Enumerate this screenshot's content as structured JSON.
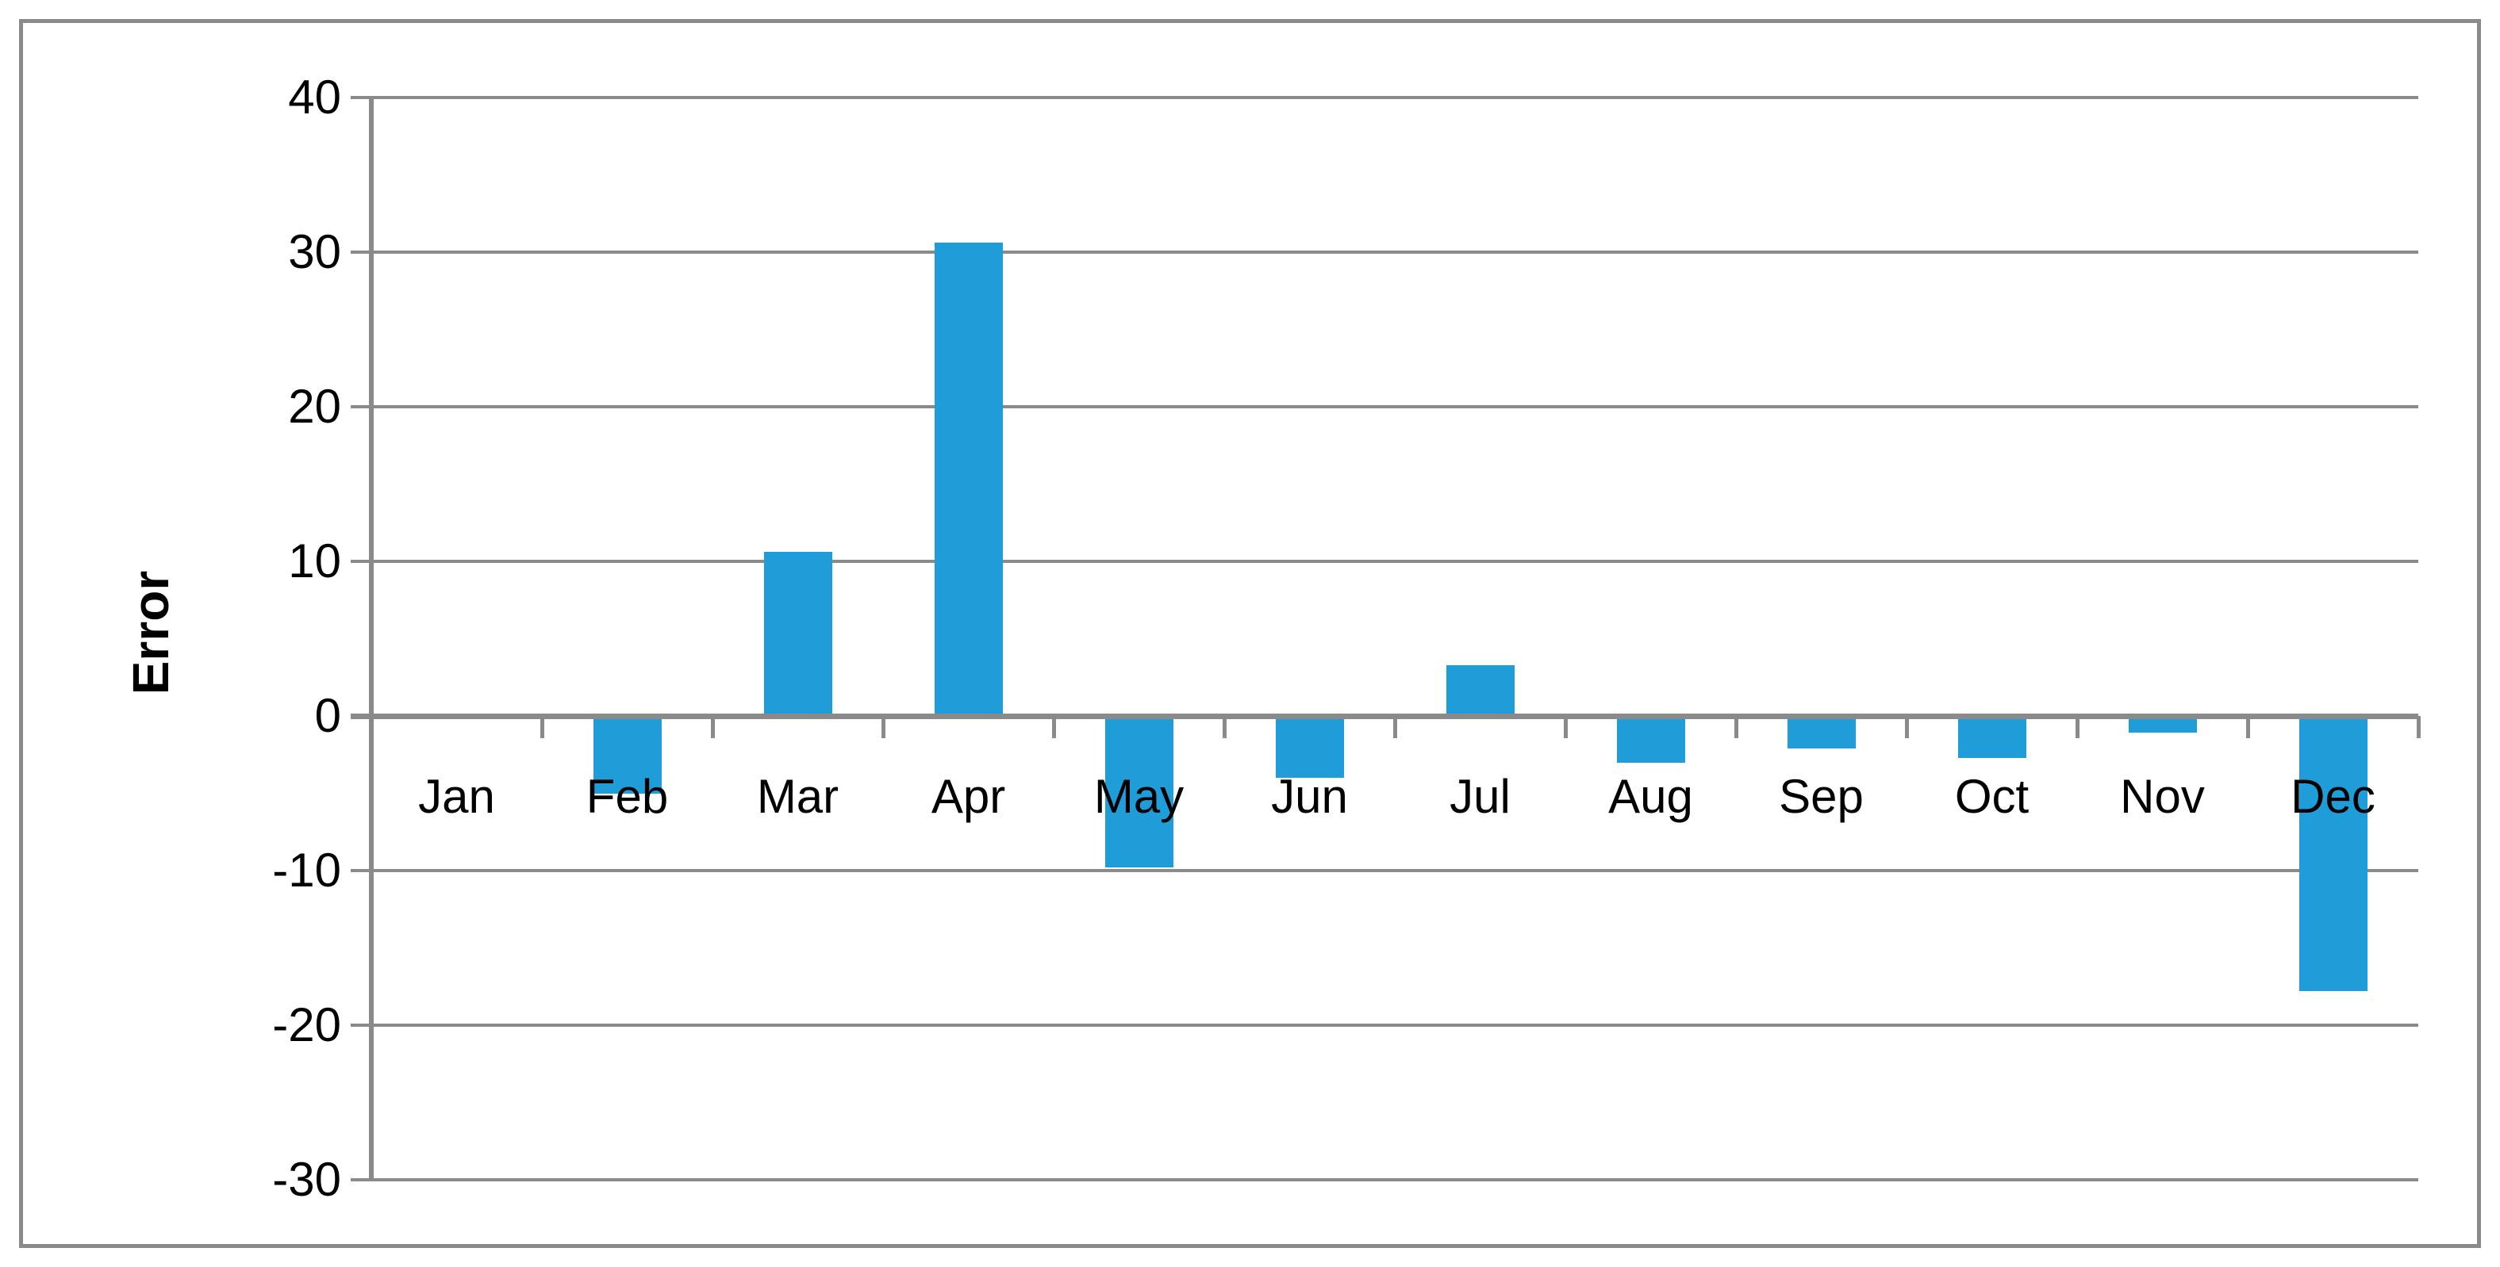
{
  "chart_data": {
    "type": "bar",
    "title": "",
    "xlabel": "",
    "ylabel": "Error",
    "categories": [
      "Jan",
      "Feb",
      "Mar",
      "Apr",
      "May",
      "Jun",
      "Jul",
      "Aug",
      "Sep",
      "Oct",
      "Nov",
      "Dec"
    ],
    "values": [
      0.1,
      -5.0,
      10.6,
      30.6,
      -9.8,
      -4.0,
      3.3,
      -3.0,
      -2.1,
      -2.7,
      -1.1,
      -17.8
    ],
    "ylim": [
      -30,
      40
    ],
    "yticks": [
      40,
      30,
      20,
      10,
      0,
      -10,
      -20,
      -30
    ],
    "ytick_labels": [
      "40",
      "30",
      "20",
      "10",
      "0",
      "-10",
      "-20",
      "-30"
    ],
    "grid": "horizontal",
    "legend": "none",
    "colors": {
      "bar": "#1E9DD9",
      "grid_line": "#8A8A8A",
      "axis_line": "#8A8A8A",
      "frame_border": "#8A8A8A",
      "text": "#000000",
      "background": "#FFFFFF"
    }
  }
}
